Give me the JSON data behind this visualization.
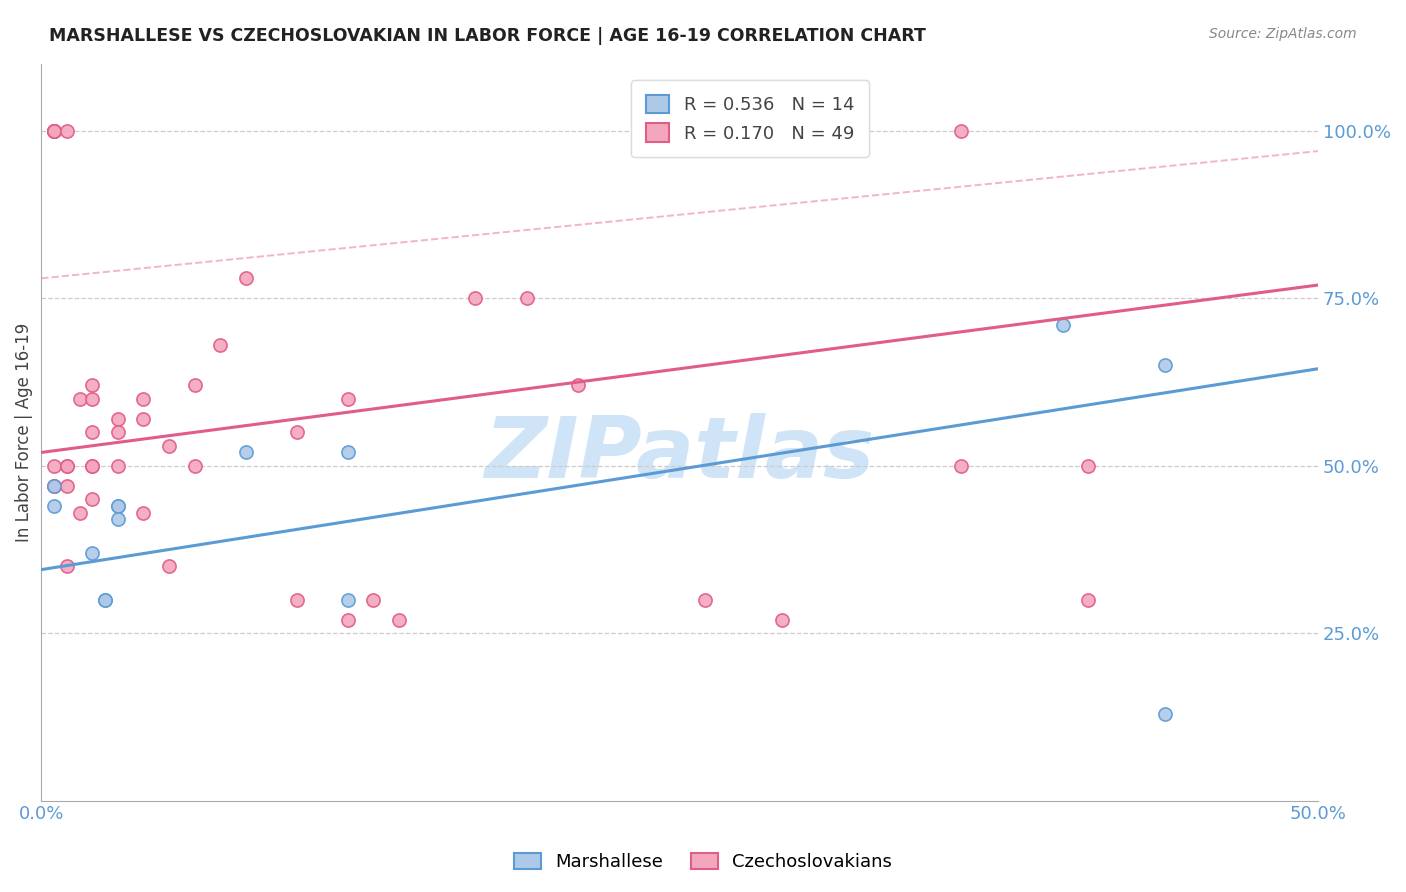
{
  "title": "MARSHALLESE VS CZECHOSLOVAKIAN IN LABOR FORCE | AGE 16-19 CORRELATION CHART",
  "source": "Source: ZipAtlas.com",
  "ylabel": "In Labor Force | Age 16-19",
  "xlim": [
    0.0,
    0.5
  ],
  "ylim": [
    0.0,
    1.1
  ],
  "yticks_right": [
    0.25,
    0.5,
    0.75,
    1.0
  ],
  "yticklabels_right": [
    "25.0%",
    "50.0%",
    "75.0%",
    "100.0%"
  ],
  "marshallese_x": [
    0.005,
    0.005,
    0.02,
    0.025,
    0.025,
    0.03,
    0.03,
    0.03,
    0.08,
    0.12,
    0.12,
    0.4,
    0.44,
    0.44
  ],
  "marshallese_y": [
    0.47,
    0.44,
    0.37,
    0.3,
    0.3,
    0.44,
    0.44,
    0.42,
    0.52,
    0.52,
    0.3,
    0.71,
    0.65,
    0.13
  ],
  "czech_x": [
    0.005,
    0.005,
    0.005,
    0.005,
    0.005,
    0.005,
    0.005,
    0.005,
    0.005,
    0.01,
    0.01,
    0.01,
    0.01,
    0.01,
    0.015,
    0.015,
    0.02,
    0.02,
    0.02,
    0.02,
    0.02,
    0.02,
    0.03,
    0.03,
    0.03,
    0.04,
    0.04,
    0.04,
    0.05,
    0.05,
    0.06,
    0.06,
    0.07,
    0.08,
    0.1,
    0.1,
    0.12,
    0.12,
    0.13,
    0.14,
    0.17,
    0.19,
    0.21,
    0.26,
    0.29,
    0.36,
    0.36,
    0.41,
    0.41
  ],
  "czech_y": [
    1.0,
    1.0,
    1.0,
    1.0,
    1.0,
    1.0,
    0.47,
    0.5,
    0.47,
    1.0,
    0.5,
    0.5,
    0.47,
    0.35,
    0.6,
    0.43,
    0.6,
    0.55,
    0.5,
    0.5,
    0.45,
    0.62,
    0.57,
    0.55,
    0.5,
    0.6,
    0.57,
    0.43,
    0.53,
    0.35,
    0.62,
    0.5,
    0.68,
    0.78,
    0.55,
    0.3,
    0.6,
    0.27,
    0.3,
    0.27,
    0.75,
    0.75,
    0.62,
    0.3,
    0.27,
    1.0,
    0.5,
    0.5,
    0.3
  ],
  "blue_line_x": [
    0.0,
    0.5
  ],
  "blue_line_y": [
    0.345,
    0.645
  ],
  "pink_line_x": [
    0.0,
    0.5
  ],
  "pink_line_y": [
    0.52,
    0.77
  ],
  "dashed_line_x": [
    0.0,
    0.5
  ],
  "dashed_line_y": [
    0.78,
    0.97
  ],
  "marker_size": 90,
  "blue_color": "#5b9bd5",
  "pink_color": "#e05c8a",
  "blue_face": "#aec9e8",
  "pink_face": "#f4a7bc",
  "grid_color": "#cccccc",
  "axis_color": "#5b9bd5",
  "bg_color": "#ffffff",
  "watermark": "ZIPatlas",
  "watermark_color": "#d0e4f7",
  "legend_R_blue": "R = 0.536",
  "legend_N_blue": "N = 14",
  "legend_R_pink": "R = 0.170",
  "legend_N_pink": "N = 49"
}
